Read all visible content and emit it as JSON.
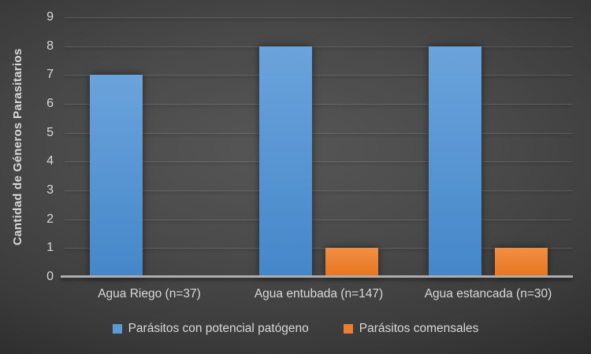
{
  "chart_data": {
    "type": "bar",
    "title": "",
    "xlabel": "",
    "ylabel": "Cantidad de Géneros Parasitarios",
    "categories": [
      "Agua Riego (n=37)",
      "Agua entubada (n=147)",
      "Agua estancada (n=30)"
    ],
    "series": [
      {
        "name": "Parásitos con potencial patógeno",
        "color": "#5B9BD5",
        "color_top": "#6BA3DC",
        "color_bottom": "#4487C9",
        "values": [
          7,
          8,
          8
        ]
      },
      {
        "name": "Parásitos comensales",
        "color": "#ED7D31",
        "color_top": "#F18F45",
        "color_bottom": "#E8751F",
        "values": [
          0,
          1,
          1
        ]
      }
    ],
    "ylim": [
      0,
      9
    ],
    "ytick_step": 1,
    "yticks": [
      "0",
      "1",
      "2",
      "3",
      "4",
      "5",
      "6",
      "7",
      "8",
      "9"
    ],
    "grid": true,
    "legend_position": "bottom"
  },
  "colors": {
    "text": "#d9d9d9",
    "axis_line": "#aeaeae",
    "gridline": "rgba(255,255,255,0.13)",
    "background_center": "#565656",
    "background_edge": "#161616"
  }
}
